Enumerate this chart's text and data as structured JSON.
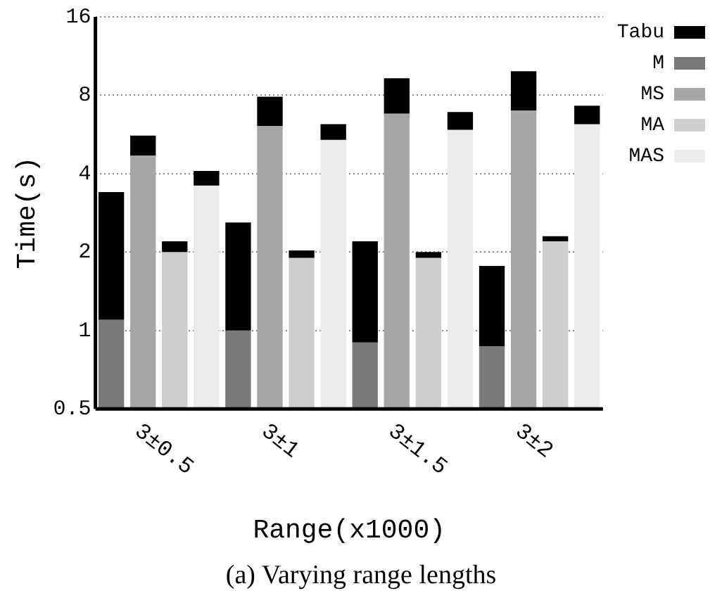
{
  "chart_data": {
    "type": "bar",
    "title": "(a) Varying range lengths",
    "xlabel": "Range(x1000)",
    "ylabel": "Time(s)",
    "categories": [
      null,
      "3±0.5",
      null,
      null,
      null,
      "3±1",
      null,
      null,
      null,
      "3±1.5",
      null,
      null,
      null,
      "3±2",
      null,
      null
    ],
    "log": "y",
    "ylim": [
      0.5,
      16
    ],
    "yticks": [
      0.5,
      1,
      2,
      4,
      8,
      16
    ],
    "grid": "y",
    "legend": "top right",
    "series": [
      {
        "name": "Tabu",
        "color": "#000000",
        "values": [
          2.3,
          0.9,
          0.2,
          0.5,
          1.6,
          1.8,
          0.13,
          0.8,
          1.3,
          2.5,
          0.1,
          1.0,
          0.9,
          2.9,
          0.1,
          1.1
        ],
        "base": [
          1.1,
          4.7,
          2.0,
          3.6,
          1.0,
          6.1,
          1.9,
          5.4,
          0.9,
          6.8,
          1.9,
          5.9,
          0.87,
          7.0,
          2.2,
          6.2
        ]
      },
      {
        "name": "M",
        "color": "#7a7a7a",
        "values": [
          1.1,
          null,
          null,
          null,
          1.0,
          null,
          null,
          null,
          0.9,
          null,
          null,
          null,
          0.87,
          null,
          null,
          null
        ]
      },
      {
        "name": "MS",
        "color": "#a6a6a6",
        "values": [
          null,
          4.7,
          null,
          null,
          null,
          6.1,
          null,
          null,
          null,
          6.8,
          null,
          null,
          null,
          7.0,
          null,
          null
        ]
      },
      {
        "name": "MA",
        "color": "#cfcfcf",
        "values": [
          null,
          null,
          2.0,
          null,
          null,
          null,
          1.9,
          null,
          null,
          null,
          1.9,
          null,
          null,
          null,
          2.2,
          null
        ]
      },
      {
        "name": "MAS",
        "color": "#ebebeb",
        "values": [
          null,
          null,
          null,
          3.6,
          null,
          null,
          null,
          5.4,
          null,
          null,
          null,
          5.9,
          null,
          null,
          null,
          6.2
        ]
      }
    ]
  }
}
